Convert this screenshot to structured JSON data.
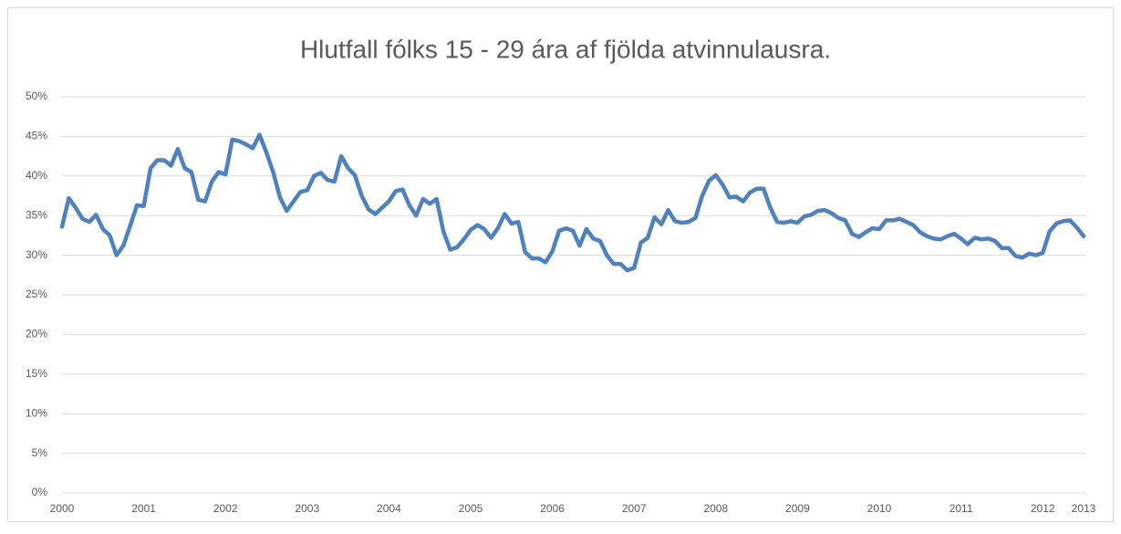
{
  "chart_data": {
    "type": "line",
    "title": "Hlutfall fólks 15 - 29 ára af fjölda atvinnulausra.",
    "categories": [
      "2000",
      null,
      null,
      null,
      null,
      null,
      null,
      null,
      null,
      null,
      null,
      null,
      "2001",
      null,
      null,
      null,
      null,
      null,
      null,
      null,
      null,
      null,
      null,
      null,
      "2002",
      null,
      null,
      null,
      null,
      null,
      null,
      null,
      null,
      null,
      null,
      null,
      "2003",
      null,
      null,
      null,
      null,
      null,
      null,
      null,
      null,
      null,
      null,
      null,
      "2004",
      null,
      null,
      null,
      null,
      null,
      null,
      null,
      null,
      null,
      null,
      null,
      "2005",
      null,
      null,
      null,
      null,
      null,
      null,
      null,
      null,
      null,
      null,
      null,
      "2006",
      null,
      null,
      null,
      null,
      null,
      null,
      null,
      null,
      null,
      null,
      null,
      "2007",
      null,
      null,
      null,
      null,
      null,
      null,
      null,
      null,
      null,
      null,
      null,
      "2008",
      null,
      null,
      null,
      null,
      null,
      null,
      null,
      null,
      null,
      null,
      null,
      "2009",
      null,
      null,
      null,
      null,
      null,
      null,
      null,
      null,
      null,
      null,
      null,
      "2010",
      null,
      null,
      null,
      null,
      null,
      null,
      null,
      null,
      null,
      null,
      null,
      "2011",
      null,
      null,
      null,
      null,
      null,
      null,
      null,
      null,
      null,
      null,
      null,
      "2012",
      null,
      null,
      null,
      null,
      null,
      "2013"
    ],
    "series": [
      {
        "color": "#4f81bd",
        "values": [
          33.6,
          37.2,
          36.0,
          34.6,
          34.2,
          35.1,
          33.3,
          32.5,
          30.0,
          31.2,
          33.7,
          36.3,
          36.2,
          41.0,
          42.0,
          42.0,
          41.3,
          43.4,
          41.0,
          40.5,
          37.0,
          36.8,
          39.3,
          40.5,
          40.2,
          44.6,
          44.4,
          44.0,
          43.5,
          45.2,
          43.0,
          40.5,
          37.3,
          35.6,
          36.8,
          38.0,
          38.2,
          40.0,
          40.4,
          39.5,
          39.3,
          42.5,
          41.0,
          40.1,
          37.5,
          35.8,
          35.2,
          36.0,
          36.8,
          38.1,
          38.3,
          36.3,
          35.0,
          37.1,
          36.5,
          37.1,
          33.0,
          30.7,
          31.0,
          32.0,
          33.2,
          33.8,
          33.3,
          32.2,
          33.4,
          35.2,
          34.0,
          34.2,
          30.4,
          29.6,
          29.6,
          29.1,
          30.5,
          33.1,
          33.4,
          33.1,
          31.2,
          33.3,
          32.1,
          31.8,
          30.0,
          28.9,
          28.9,
          28.1,
          28.4,
          31.6,
          32.2,
          34.8,
          33.9,
          35.7,
          34.3,
          34.1,
          34.2,
          34.7,
          37.5,
          39.4,
          40.1,
          38.9,
          37.3,
          37.4,
          36.8,
          37.9,
          38.4,
          38.4,
          36.0,
          34.2,
          34.1,
          34.3,
          34.1,
          34.9,
          35.1,
          35.6,
          35.7,
          35.3,
          34.7,
          34.4,
          32.7,
          32.3,
          32.9,
          33.4,
          33.3,
          34.4,
          34.4,
          34.6,
          34.2,
          33.8,
          32.9,
          32.4,
          32.1,
          32.0,
          32.4,
          32.7,
          32.1,
          31.4,
          32.2,
          32.0,
          32.1,
          31.8,
          30.9,
          30.9,
          29.9,
          29.7,
          30.2,
          30.0,
          30.3,
          33.0,
          34.0,
          34.3,
          34.4,
          33.5,
          32.4
        ]
      }
    ],
    "ylim": [
      0,
      50
    ],
    "yticks": [
      {
        "value": 0,
        "label": "0%"
      },
      {
        "value": 5,
        "label": "5%"
      },
      {
        "value": 10,
        "label": "10%"
      },
      {
        "value": 15,
        "label": "15%"
      },
      {
        "value": 20,
        "label": "20%"
      },
      {
        "value": 25,
        "label": "25%"
      },
      {
        "value": 30,
        "label": "30%"
      },
      {
        "value": 35,
        "label": "35%"
      },
      {
        "value": 40,
        "label": "40%"
      },
      {
        "value": 45,
        "label": "45%"
      },
      {
        "value": 50,
        "label": "50%"
      }
    ],
    "grid": true
  }
}
